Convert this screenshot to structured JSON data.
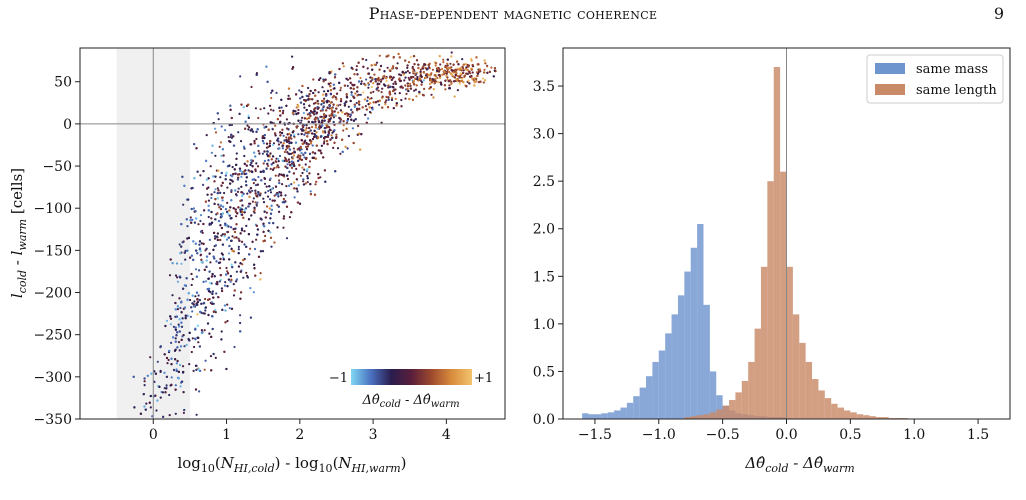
{
  "header": {
    "running_title": "Phase-dependent magnetic coherence",
    "page_number": "9"
  },
  "chart_data": [
    {
      "type": "scatter",
      "xlabel": "log₁₀(N_HI,cold) - log₁₀(N_HI,warm)",
      "ylabel": "l_cold - l_warm [cells]",
      "xlim": [
        -1.0,
        4.8
      ],
      "ylim": [
        -350,
        90
      ],
      "xticks": [
        0,
        1,
        2,
        3,
        4
      ],
      "yticks": [
        50,
        0,
        -50,
        -100,
        -150,
        -200,
        -250,
        -300,
        -350
      ],
      "reference_lines": {
        "x": 0,
        "y": 0
      },
      "shaded_band": {
        "x_from": -0.5,
        "x_to": 0.5
      },
      "grid": false,
      "colorbar": {
        "label": "Δθ̂_cold - Δθ̂_warm",
        "min_label": "−1",
        "max_label": "+1",
        "min": -1,
        "max": 1,
        "colors": [
          "#7fd8f4",
          "#4a6fbf",
          "#2a1d4e",
          "#5a1e3a",
          "#9e4a2e",
          "#d98d3c",
          "#f2c46e"
        ],
        "placement": "lower-right inset"
      },
      "trend": [
        {
          "x": 0.0,
          "y_center": -330,
          "y_spread": 40
        },
        {
          "x": 0.5,
          "y_center": -200,
          "y_spread": 140
        },
        {
          "x": 1.0,
          "y_center": -120,
          "y_spread": 120
        },
        {
          "x": 1.5,
          "y_center": -60,
          "y_spread": 90
        },
        {
          "x": 2.0,
          "y_center": -20,
          "y_spread": 60
        },
        {
          "x": 2.5,
          "y_center": 15,
          "y_spread": 45
        },
        {
          "x": 3.0,
          "y_center": 40,
          "y_spread": 35
        },
        {
          "x": 3.5,
          "y_center": 55,
          "y_spread": 25
        },
        {
          "x": 4.0,
          "y_center": 60,
          "y_spread": 15
        }
      ]
    },
    {
      "type": "bar",
      "xlabel": "Δθ̂_cold - Δθ̂_warm",
      "ylabel": "",
      "xlim": [
        -1.75,
        1.75
      ],
      "ylim": [
        0,
        3.9
      ],
      "xticks": [
        -1.5,
        -1.0,
        -0.5,
        0.0,
        0.5,
        1.0,
        1.5
      ],
      "xtick_labels": [
        "−1.5",
        "−1.0",
        "−0.5",
        "0.0",
        "0.5",
        "1.0",
        "1.5"
      ],
      "yticks": [
        0.0,
        0.5,
        1.0,
        1.5,
        2.0,
        2.5,
        3.0,
        3.5
      ],
      "reference_lines": {
        "x": 0
      },
      "legend_placement": "top-right",
      "bin_width": 0.05,
      "series": [
        {
          "name": "same mass",
          "color": "#6f95cf",
          "bins_start": -1.6,
          "values": [
            0.06,
            0.05,
            0.05,
            0.06,
            0.07,
            0.09,
            0.12,
            0.17,
            0.24,
            0.33,
            0.45,
            0.6,
            0.72,
            0.9,
            1.1,
            1.3,
            1.55,
            1.8,
            2.05,
            1.2,
            0.5,
            0.25,
            0.14,
            0.09,
            0.06,
            0.05,
            0.04,
            0.03,
            0.03,
            0.02,
            0.02,
            0.02
          ]
        },
        {
          "name": "same length",
          "color": "#c98a68",
          "bins_start": -0.8,
          "values": [
            0.02,
            0.03,
            0.04,
            0.05,
            0.07,
            0.1,
            0.14,
            0.2,
            0.28,
            0.4,
            0.6,
            0.95,
            1.6,
            2.5,
            3.7,
            2.6,
            1.6,
            1.1,
            0.8,
            0.6,
            0.42,
            0.3,
            0.22,
            0.16,
            0.12,
            0.09,
            0.07,
            0.05,
            0.04,
            0.03,
            0.02,
            0.02,
            0.01,
            0.01,
            0.01
          ]
        }
      ]
    }
  ]
}
